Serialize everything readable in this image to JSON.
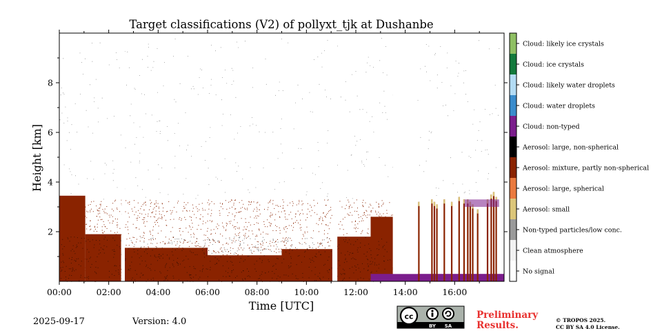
{
  "chart_data": {
    "type": "heatmap",
    "title": "Target classifications (V2) of pollyxt_tjk at Dushanbe",
    "xlabel": "Time [UTC]",
    "ylabel": "Height [km]",
    "xlim": [
      0,
      18
    ],
    "ylim": [
      0,
      10
    ],
    "x_ticks": [
      0,
      2,
      4,
      6,
      8,
      10,
      12,
      14,
      16
    ],
    "x_tick_labels": [
      "00:00",
      "02:00",
      "04:00",
      "06:00",
      "08:00",
      "10:00",
      "12:00",
      "14:00",
      "16:00"
    ],
    "y_ticks": [
      2,
      4,
      6,
      8
    ],
    "y_tick_labels": [
      "2",
      "4",
      "6",
      "8"
    ],
    "colorbar": [
      {
        "label": "Cloud: likely ice crystals",
        "color": "#8fbf63"
      },
      {
        "label": "Cloud: ice crystals",
        "color": "#137a3c"
      },
      {
        "label": "Cloud: likely water droplets",
        "color": "#b3dcf4"
      },
      {
        "label": "Cloud: water droplets",
        "color": "#3a8ccc"
      },
      {
        "label": "Cloud: non-typed",
        "color": "#7b1d8c"
      },
      {
        "label": "Aerosol: large, non-spherical",
        "color": "#000000"
      },
      {
        "label": "Aerosol: mixture, partly non-spherical",
        "color": "#8a2300"
      },
      {
        "label": "Aerosol: large, spherical",
        "color": "#ea7a3e"
      },
      {
        "label": "Aerosol: small",
        "color": "#dcc67a"
      },
      {
        "label": "Non-typed particles/low conc.",
        "color": "#9a9a9a"
      },
      {
        "label": "Clean atmosphere",
        "color": "#f2f2f2"
      },
      {
        "label": "No signal",
        "color": "#ffffff"
      }
    ],
    "segments": [
      {
        "t0": 0.0,
        "t1": 1.05,
        "top": 3.45,
        "class": "Aerosol: mixture, partly non-spherical"
      },
      {
        "t0": 1.05,
        "t1": 2.5,
        "top": 1.9,
        "class": "Aerosol: mixture, partly non-spherical"
      },
      {
        "t0": 2.65,
        "t1": 6.0,
        "top": 1.35,
        "class": "Aerosol: mixture, partly non-spherical"
      },
      {
        "t0": 6.0,
        "t1": 9.0,
        "top": 1.05,
        "class": "Aerosol: mixture, partly non-spherical"
      },
      {
        "t0": 9.0,
        "t1": 11.05,
        "top": 1.3,
        "class": "Aerosol: mixture, partly non-spherical"
      },
      {
        "t0": 11.25,
        "t1": 12.6,
        "top": 1.8,
        "class": "Aerosol: mixture, partly non-spherical"
      },
      {
        "t0": 12.6,
        "t1": 13.5,
        "top": 2.6,
        "class": "Aerosol: mixture, partly non-spherical"
      }
    ],
    "gaps": [
      [
        2.52,
        2.65
      ],
      [
        11.05,
        11.25
      ],
      [
        13.5,
        14.5
      ]
    ],
    "spikes": [
      {
        "t": 14.52,
        "top": 3.2
      },
      {
        "t": 15.05,
        "top": 3.3
      },
      {
        "t": 15.15,
        "top": 3.2
      },
      {
        "t": 15.25,
        "top": 3.1
      },
      {
        "t": 15.55,
        "top": 3.3
      },
      {
        "t": 15.85,
        "top": 3.2
      },
      {
        "t": 16.15,
        "top": 3.4
      },
      {
        "t": 16.35,
        "top": 3.3
      },
      {
        "t": 16.5,
        "top": 3.3
      },
      {
        "t": 16.6,
        "top": 3.2
      },
      {
        "t": 16.7,
        "top": 3.1
      },
      {
        "t": 16.9,
        "top": 2.9
      },
      {
        "t": 17.3,
        "top": 3.3
      },
      {
        "t": 17.45,
        "top": 3.5
      },
      {
        "t": 17.55,
        "top": 3.6
      },
      {
        "t": 17.65,
        "top": 3.4
      }
    ],
    "noise_overlay": {
      "t0": 0.0,
      "t1": 13.5,
      "top_range": [
        3.0,
        3.3
      ]
    },
    "nontyped_layer": {
      "t0": 12.6,
      "t1": 18.0,
      "top": 0.3,
      "class": "Cloud: non-typed"
    },
    "cloud_patch": {
      "t0": 16.4,
      "t1": 17.8,
      "bottom": 3.0,
      "top": 3.3,
      "class": "Cloud: non-typed"
    }
  },
  "footer": {
    "date": "2025-09-17",
    "version": "Version: 4.0",
    "preliminary": "Preliminary\nResults.",
    "copyright_line1": "© TROPOS 2025.",
    "copyright_line2": "CC BY SA 4.0 License.",
    "license_logo": {
      "cc": "cc",
      "by": "BY",
      "sa": "SA"
    }
  }
}
